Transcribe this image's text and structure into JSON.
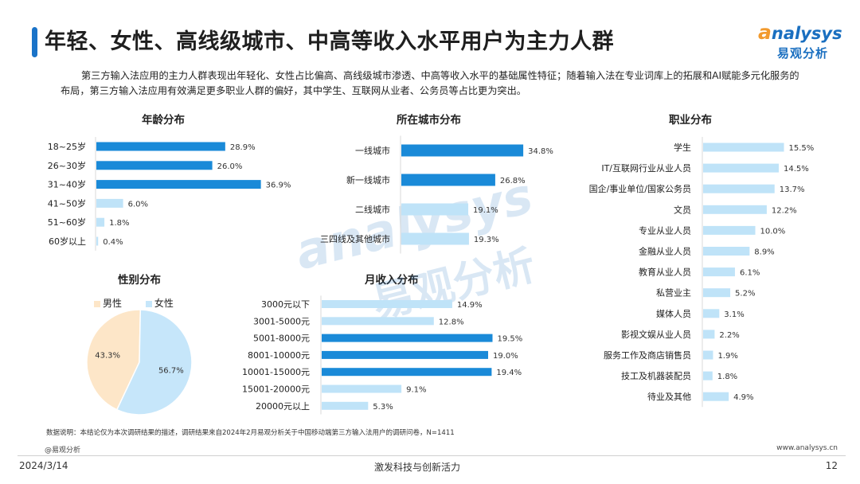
{
  "title": "年轻、女性、高线级城市、中高等收入水平用户为主力人群",
  "logo": {
    "en_mark": "a",
    "en_rest": "nalysys",
    "cn": "易观分析"
  },
  "intro": "第三方输入法应用的主力人群表现出年轻化、女性占比偏高、高线级城市渗透、中高等收入水平的基础属性特征；随着输入法在专业词库上的拓展和AI赋能多元化服务的布局，第三方输入法应用有效满足更多职业人群的偏好，其中学生、互联网从业者、公务员等占比更为突出。",
  "colors": {
    "accent": "#1a73c8",
    "dark_bar": "#1a8ad8",
    "light_bar": "#bfe3f8",
    "pie_male": "#fde6c8",
    "pie_female": "#c6e6fa"
  },
  "chart_data": [
    {
      "id": "age",
      "type": "bar",
      "orientation": "horizontal",
      "title": "年龄分布",
      "categories": [
        "18~25岁",
        "26~30岁",
        "31~40岁",
        "41~50岁",
        "51~60岁",
        "60岁以上"
      ],
      "values": [
        28.9,
        26.0,
        36.9,
        6.0,
        1.8,
        0.4
      ],
      "labels": [
        "28.9%",
        "26.0%",
        "36.9%",
        "6.0%",
        "1.8%",
        "0.4%"
      ],
      "highlight": [
        true,
        true,
        true,
        false,
        false,
        false
      ],
      "unit": "%"
    },
    {
      "id": "city",
      "type": "bar",
      "orientation": "horizontal",
      "title": "所在城市分布",
      "categories": [
        "一线城市",
        "新一线城市",
        "二线城市",
        "三四线及其他城市"
      ],
      "values": [
        34.8,
        26.8,
        19.1,
        19.3
      ],
      "labels": [
        "34.8%",
        "26.8%",
        "19.1%",
        "19.3%"
      ],
      "highlight": [
        true,
        true,
        false,
        false
      ],
      "unit": "%"
    },
    {
      "id": "job",
      "type": "bar",
      "orientation": "horizontal",
      "title": "职业分布",
      "categories": [
        "学生",
        "IT/互联网行业从业人员",
        "国企/事业单位/国家公务员",
        "文员",
        "专业从业人员",
        "金融从业人员",
        "教育从业人员",
        "私营业主",
        "媒体人员",
        "影视文娱从业人员",
        "服务工作及商店销售员",
        "技工及机器装配员",
        "待业及其他"
      ],
      "values": [
        15.5,
        14.5,
        13.7,
        12.2,
        10.0,
        8.9,
        6.1,
        5.2,
        3.1,
        2.2,
        1.9,
        1.8,
        4.9
      ],
      "labels": [
        "15.5%",
        "14.5%",
        "13.7%",
        "12.2%",
        "10.0%",
        "8.9%",
        "6.1%",
        "5.2%",
        "3.1%",
        "2.2%",
        "1.9%",
        "1.8%",
        "4.9%"
      ],
      "unit": "%"
    },
    {
      "id": "gender",
      "type": "pie",
      "title": "性别分布",
      "categories": [
        "男性",
        "女性"
      ],
      "values": [
        43.3,
        56.7
      ],
      "labels": [
        "43.3%",
        "56.7%"
      ],
      "unit": "%"
    },
    {
      "id": "income",
      "type": "bar",
      "orientation": "horizontal",
      "title": "月收入分布",
      "categories": [
        "3000元以下",
        "3001-5000元",
        "5001-8000元",
        "8001-10000元",
        "10001-15000元",
        "15001-20000元",
        "20000元以上"
      ],
      "values": [
        14.9,
        12.8,
        19.5,
        19.0,
        19.4,
        9.1,
        5.3
      ],
      "labels": [
        "14.9%",
        "12.8%",
        "19.5%",
        "19.0%",
        "19.4%",
        "9.1%",
        "5.3%"
      ],
      "highlight": [
        false,
        false,
        true,
        true,
        true,
        false,
        false
      ],
      "unit": "%"
    }
  ],
  "note": "数据说明：本结论仅为本次调研结果的描述，调研结果来自2024年2月易观分析关于中国移动端第三方输入法用户的调研问卷，N=1411",
  "footer": {
    "copyright": "@易观分析",
    "website": "www.analysys.cn",
    "date": "2024/3/14",
    "slogan": "激发科技与创新活力",
    "page": "12"
  }
}
